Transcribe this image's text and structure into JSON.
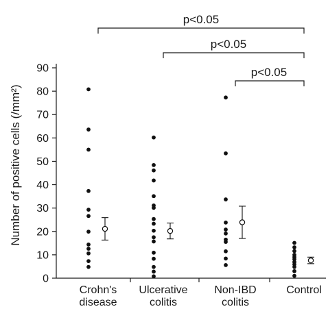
{
  "chart_data": {
    "type": "scatter",
    "ylabel": "Number of positive cells (/mm²)",
    "ylim": [
      0,
      90
    ],
    "y_ticks": [
      "0",
      "10",
      "20",
      "30",
      "40",
      "50",
      "60",
      "70",
      "80",
      "90"
    ],
    "categories": [
      {
        "line1": "Crohn's",
        "line2": "disease"
      },
      {
        "line1": "Ulcerative",
        "line2": "colitis"
      },
      {
        "line1": "Non-IBD",
        "line2": "colitis"
      },
      {
        "line1": "Control",
        "line2": ""
      }
    ],
    "groups": [
      {
        "points": [
          80.8,
          63.6,
          55.0,
          37.3,
          29.3,
          26.6,
          19.9,
          14.4,
          12.6,
          10.6,
          7.3,
          4.8
        ],
        "mean": 21.1,
        "error_low": 16.3,
        "error_high": 25.9
      },
      {
        "points": [
          60.2,
          48.4,
          46.1,
          41.8,
          35.1,
          31.1,
          30.1,
          25.3,
          23.3,
          20.3,
          17.5,
          15.7,
          10.9,
          8.3,
          4.8,
          2.8,
          0.8
        ],
        "mean": 20.2,
        "error_low": 16.8,
        "error_high": 23.6
      },
      {
        "points": [
          77.3,
          53.4,
          33.7,
          23.8,
          20.8,
          19.1,
          16.5,
          15.5,
          11.5,
          8.4,
          5.6
        ],
        "mean": 23.9,
        "error_low": 17.0,
        "error_high": 30.8
      },
      {
        "points": [
          15.1,
          13.2,
          11.6,
          10.0,
          9.0,
          8.1,
          6.9,
          5.9,
          4.8,
          3.0,
          1.0
        ],
        "mean": 7.6,
        "error_low": 6.2,
        "error_high": 9.0
      }
    ],
    "significance": [
      {
        "from": 0,
        "to": 3,
        "label": "p<0.05"
      },
      {
        "from": 1,
        "to": 3,
        "label": "p<0.05"
      },
      {
        "from": 2,
        "to": 3,
        "label": "p<0.05"
      }
    ],
    "grid": false
  }
}
